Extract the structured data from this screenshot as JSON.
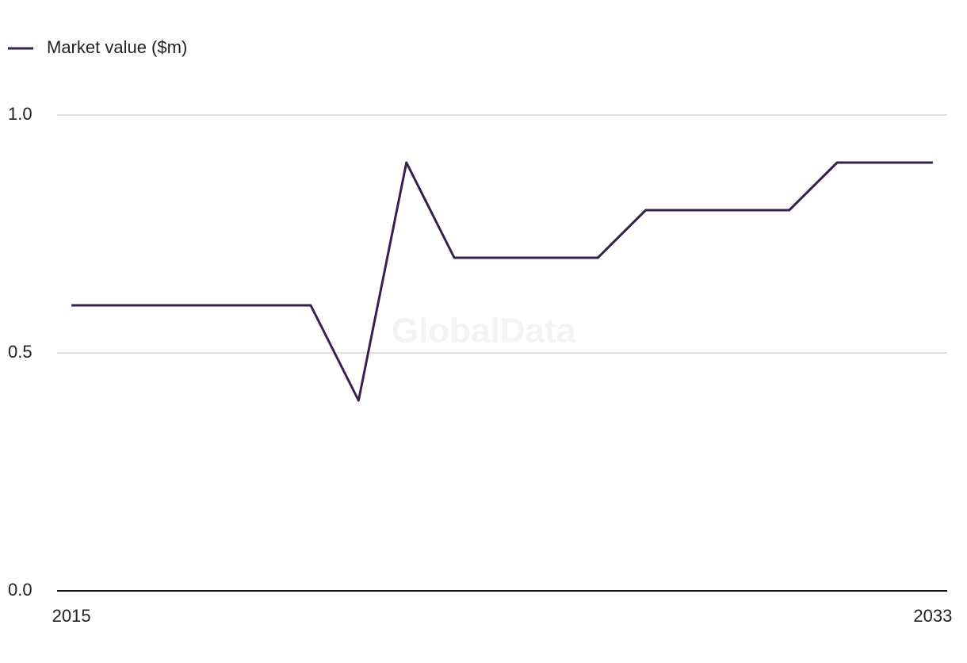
{
  "chart_data": {
    "type": "line",
    "watermark": "GlobalData",
    "x": [
      2015,
      2016,
      2017,
      2018,
      2019,
      2020,
      2021,
      2022,
      2023,
      2024,
      2025,
      2026,
      2027,
      2028,
      2029,
      2030,
      2031,
      2032,
      2033
    ],
    "series": [
      {
        "name": "Market value ($m)",
        "color": "#35204f",
        "values": [
          0.6,
          0.6,
          0.6,
          0.6,
          0.6,
          0.6,
          0.4,
          0.9,
          0.7,
          0.7,
          0.7,
          0.7,
          0.8,
          0.8,
          0.8,
          0.8,
          0.9,
          0.9,
          0.9
        ]
      }
    ],
    "xlim": [
      2014.7,
      2033.3
    ],
    "xticks": [
      2015,
      2033
    ],
    "ylim": [
      0,
      1
    ],
    "yticks": [
      {
        "value": 0,
        "label": "0.0"
      },
      0.5,
      {
        "value": 1,
        "label": "1.0"
      }
    ],
    "grid": true,
    "legend": "top-left"
  }
}
